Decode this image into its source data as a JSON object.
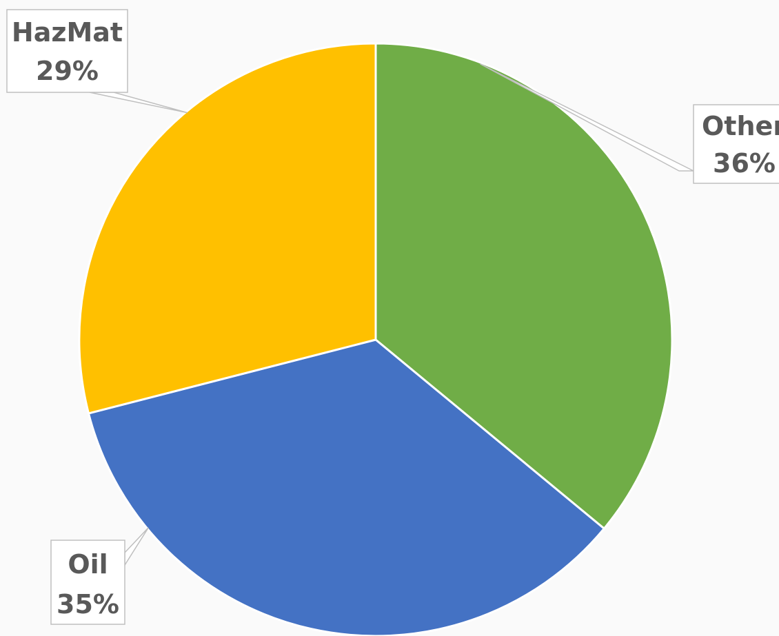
{
  "chart_data": {
    "type": "pie",
    "start_angle_deg": 0,
    "direction": "clockwise",
    "slices": [
      {
        "label": "Other",
        "value": 36,
        "value_label": "36%",
        "color": "#70ad47"
      },
      {
        "label": "Oil",
        "value": 35,
        "value_label": "35%",
        "color": "#4472c4"
      },
      {
        "label": "HazMat",
        "value": 29,
        "value_label": "29%",
        "color": "#ffc000"
      }
    ]
  }
}
